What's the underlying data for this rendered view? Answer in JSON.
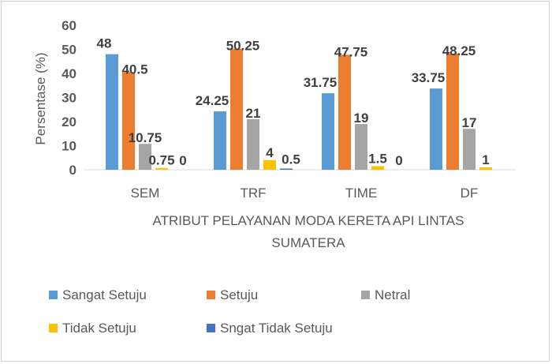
{
  "chart_data": {
    "type": "bar",
    "categories": [
      "SEM",
      "TRF",
      "TIME",
      "DF"
    ],
    "series": [
      {
        "name": "Sangat Setuju",
        "color": "#5B9BD5",
        "values": [
          48,
          24.25,
          31.75,
          33.75
        ],
        "labels": [
          "48",
          "24.25",
          "31.75",
          "33.75"
        ]
      },
      {
        "name": "Setuju",
        "color": "#ED7D31",
        "values": [
          40.5,
          50.25,
          47.75,
          48.25
        ],
        "labels": [
          "40.5",
          "50.25",
          "47.75",
          "48.25"
        ]
      },
      {
        "name": "Netral",
        "color": "#A5A5A5",
        "values": [
          10.75,
          21,
          19,
          17
        ],
        "labels": [
          "10.75",
          "21",
          "19",
          "17"
        ]
      },
      {
        "name": "Tidak Setuju",
        "color": "#FFC000",
        "values": [
          0.75,
          4,
          1.5,
          1
        ],
        "labels": [
          "0.75",
          "4",
          "1.5",
          "1"
        ]
      },
      {
        "name": "Sngat Tidak Setuju",
        "color": "#4472C4",
        "values": [
          0,
          0.5,
          0,
          null
        ],
        "labels": [
          "0",
          "0.5",
          "0",
          ""
        ]
      }
    ],
    "yticks": [
      "0",
      "10",
      "20",
      "30",
      "40",
      "50",
      "60"
    ],
    "ylim": [
      0,
      60
    ],
    "ylabel": "Persentase (%)",
    "xlabel_lines": [
      "ATRIBUT PELAYANAN MODA KERETA API LINTAS",
      "SUMATERA"
    ],
    "title": "",
    "grid": false,
    "legend": "bottom"
  }
}
